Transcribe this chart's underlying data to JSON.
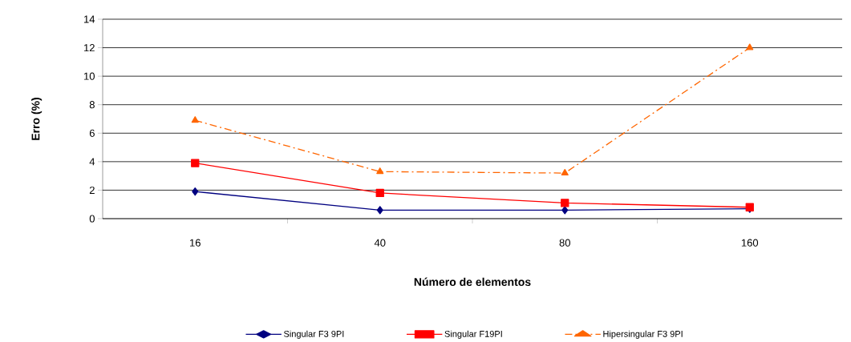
{
  "chart_data": {
    "type": "line",
    "xlabel": "Número de elementos",
    "ylabel": "Erro (%)",
    "categories": [
      "16",
      "40",
      "80",
      "160"
    ],
    "ylim": [
      0,
      14
    ],
    "yticks": [
      0,
      2,
      4,
      6,
      8,
      10,
      12,
      14
    ],
    "grid": "y",
    "legend": "bottom",
    "series": [
      {
        "name": "Singular F3 9PI",
        "color": "#000080",
        "marker": "diamond",
        "line_style": "solid",
        "values": [
          1.9,
          0.6,
          0.6,
          0.7
        ]
      },
      {
        "name": "Singular F19PI",
        "color": "#ff0000",
        "marker": "square",
        "line_style": "solid",
        "values": [
          3.9,
          1.8,
          1.1,
          0.8
        ]
      },
      {
        "name": "Hipersingular F3 9PI",
        "color": "#ff6600",
        "marker": "triangle",
        "line_style": "dashdot",
        "values": [
          6.9,
          3.3,
          3.2,
          12.0
        ]
      }
    ]
  }
}
